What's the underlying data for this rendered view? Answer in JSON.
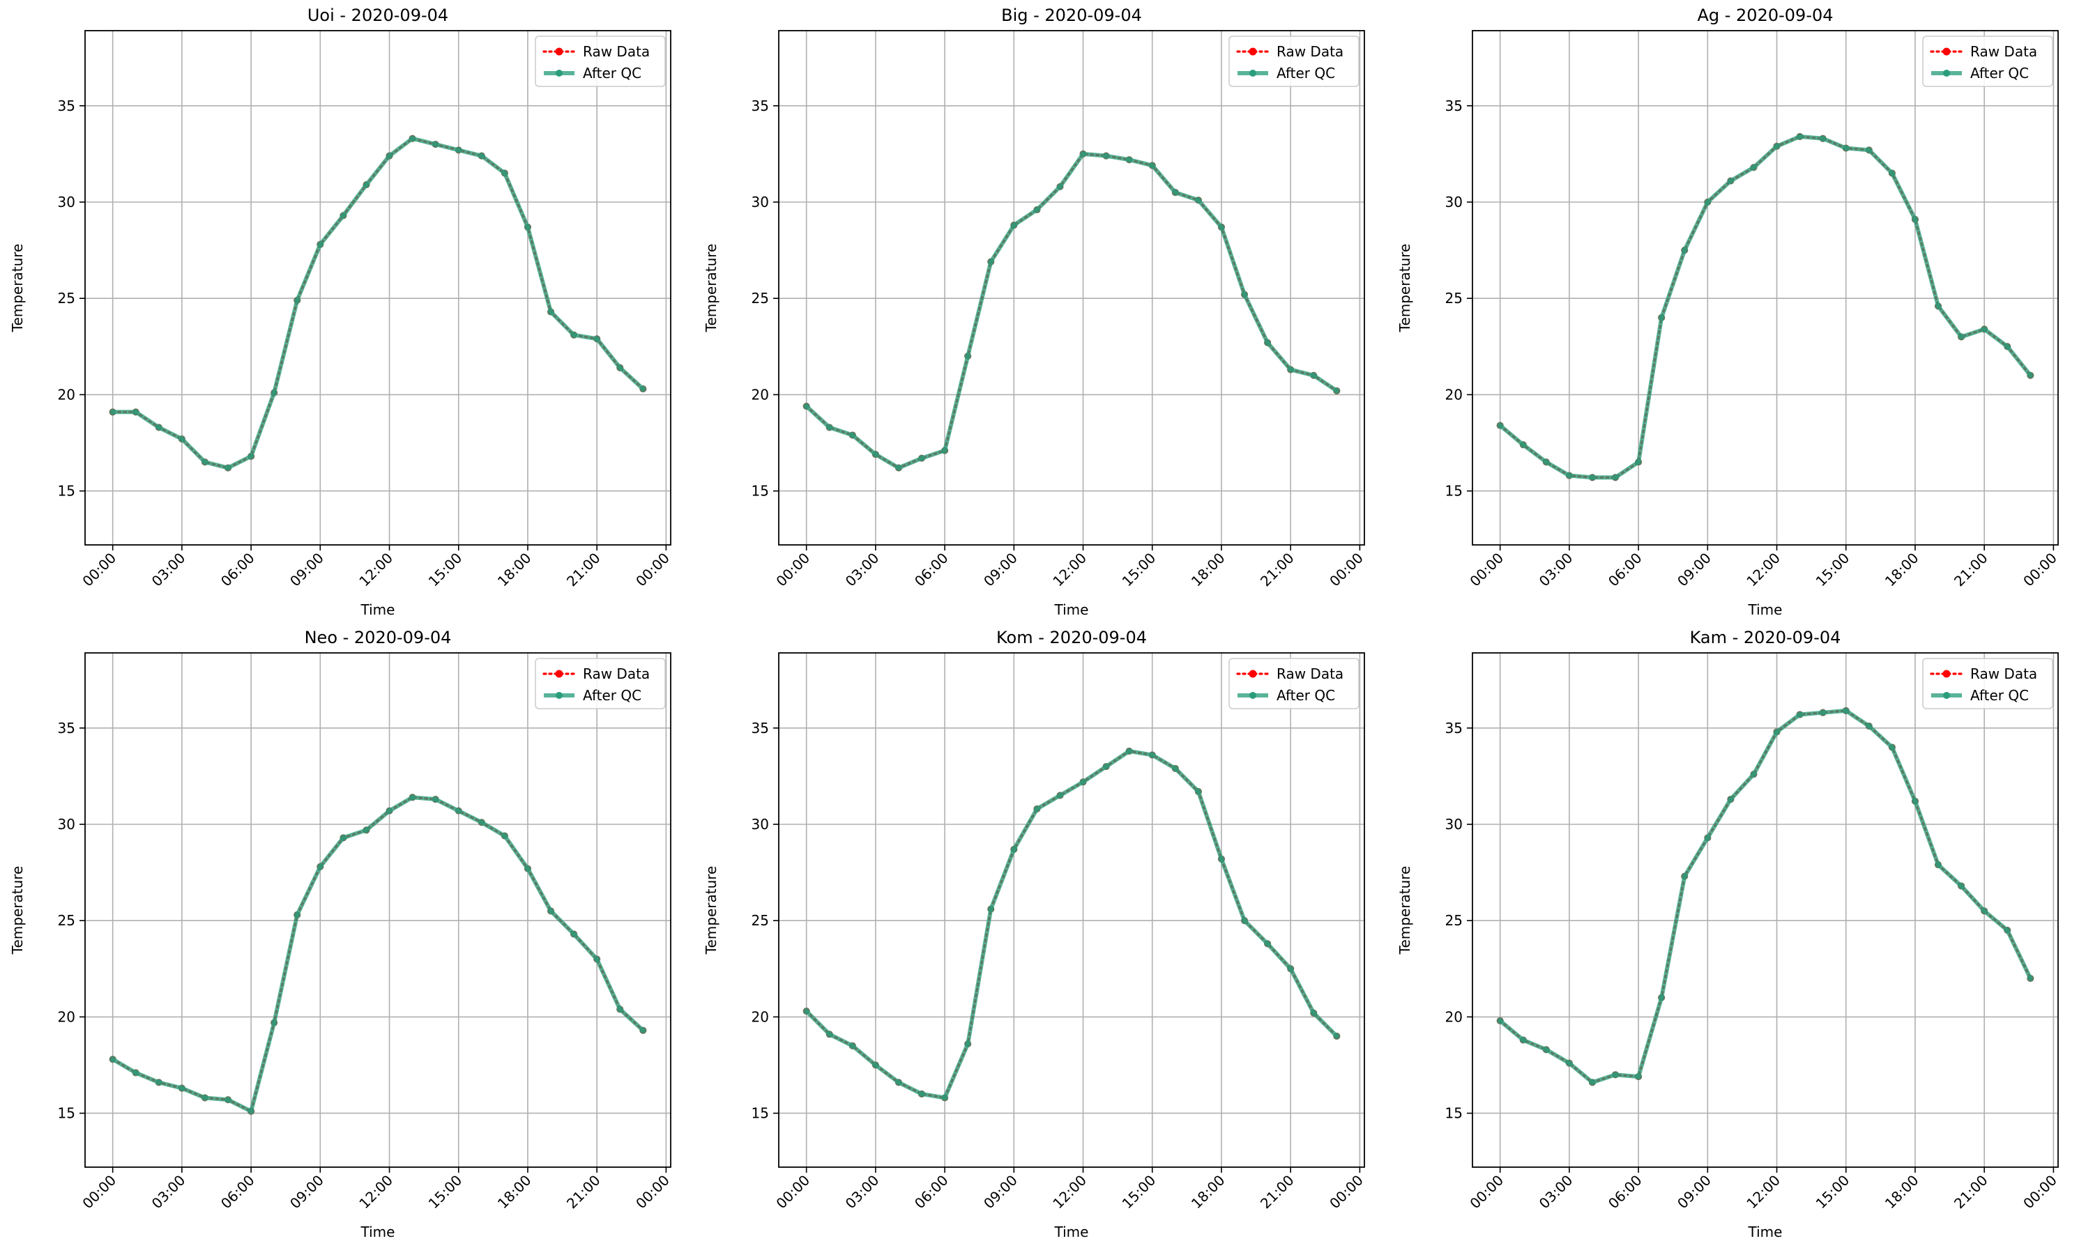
{
  "chart_data": [
    {
      "type": "line",
      "title": "Uoi - 2020-09-04",
      "xlabel": "Time",
      "ylabel": "Temperature",
      "x": [
        "00:00",
        "01:00",
        "02:00",
        "03:00",
        "04:00",
        "05:00",
        "06:00",
        "07:00",
        "08:00",
        "09:00",
        "10:00",
        "11:00",
        "12:00",
        "13:00",
        "14:00",
        "15:00",
        "16:00",
        "17:00",
        "18:00",
        "19:00",
        "20:00",
        "21:00",
        "22:00",
        "23:00"
      ],
      "xticks": [
        "00:00",
        "03:00",
        "06:00",
        "09:00",
        "12:00",
        "15:00",
        "18:00",
        "21:00",
        "00:00"
      ],
      "yticks": [
        15,
        20,
        25,
        30,
        35
      ],
      "ylim": [
        12.2,
        38.9
      ],
      "xlim": [
        -1.2,
        24.2
      ],
      "grid": true,
      "legend_position": "upper right",
      "series": [
        {
          "name": "Raw Data",
          "color": "#ff0000",
          "style": "dotted",
          "values": [
            19.1,
            19.1,
            18.3,
            17.7,
            16.5,
            16.2,
            16.8,
            20.1,
            24.9,
            27.8,
            29.3,
            30.9,
            32.4,
            33.3,
            33.0,
            32.7,
            32.4,
            31.5,
            28.7,
            24.3,
            23.1,
            22.9,
            21.4,
            20.3
          ]
        },
        {
          "name": "After QC",
          "color": "#2a9d7c",
          "style": "solid",
          "values": [
            19.1,
            19.1,
            18.3,
            17.7,
            16.5,
            16.2,
            16.8,
            20.1,
            24.9,
            27.8,
            29.3,
            30.9,
            32.4,
            33.3,
            33.0,
            32.7,
            32.4,
            31.5,
            28.7,
            24.3,
            23.1,
            22.9,
            21.4,
            20.3
          ]
        }
      ]
    },
    {
      "type": "line",
      "title": "Big - 2020-09-04",
      "xlabel": "Time",
      "ylabel": "Temperature",
      "x": [
        "00:00",
        "01:00",
        "02:00",
        "03:00",
        "04:00",
        "05:00",
        "06:00",
        "07:00",
        "08:00",
        "09:00",
        "10:00",
        "11:00",
        "12:00",
        "13:00",
        "14:00",
        "15:00",
        "16:00",
        "17:00",
        "18:00",
        "19:00",
        "20:00",
        "21:00",
        "22:00",
        "23:00"
      ],
      "xticks": [
        "00:00",
        "03:00",
        "06:00",
        "09:00",
        "12:00",
        "15:00",
        "18:00",
        "21:00",
        "00:00"
      ],
      "yticks": [
        15,
        20,
        25,
        30,
        35
      ],
      "ylim": [
        12.2,
        38.9
      ],
      "xlim": [
        -1.2,
        24.2
      ],
      "grid": true,
      "legend_position": "upper right",
      "series": [
        {
          "name": "Raw Data",
          "color": "#ff0000",
          "style": "dotted",
          "values": [
            19.4,
            18.3,
            17.9,
            16.9,
            16.2,
            16.7,
            17.1,
            22.0,
            26.9,
            28.8,
            29.6,
            30.8,
            32.5,
            32.4,
            32.2,
            31.9,
            30.5,
            30.1,
            28.7,
            25.2,
            22.7,
            21.3,
            21.0,
            20.2
          ]
        },
        {
          "name": "After QC",
          "color": "#2a9d7c",
          "style": "solid",
          "values": [
            19.4,
            18.3,
            17.9,
            16.9,
            16.2,
            16.7,
            17.1,
            22.0,
            26.9,
            28.8,
            29.6,
            30.8,
            32.5,
            32.4,
            32.2,
            31.9,
            30.5,
            30.1,
            28.7,
            25.2,
            22.7,
            21.3,
            21.0,
            20.2
          ]
        }
      ]
    },
    {
      "type": "line",
      "title": "Ag - 2020-09-04",
      "xlabel": "Time",
      "ylabel": "Temperature",
      "x": [
        "00:00",
        "01:00",
        "02:00",
        "03:00",
        "04:00",
        "05:00",
        "06:00",
        "07:00",
        "08:00",
        "09:00",
        "10:00",
        "11:00",
        "12:00",
        "13:00",
        "14:00",
        "15:00",
        "16:00",
        "17:00",
        "18:00",
        "19:00",
        "20:00",
        "21:00",
        "22:00",
        "23:00"
      ],
      "xticks": [
        "00:00",
        "03:00",
        "06:00",
        "09:00",
        "12:00",
        "15:00",
        "18:00",
        "21:00",
        "00:00"
      ],
      "yticks": [
        15,
        20,
        25,
        30,
        35
      ],
      "ylim": [
        12.2,
        38.9
      ],
      "xlim": [
        -1.2,
        24.2
      ],
      "grid": true,
      "legend_position": "upper right",
      "series": [
        {
          "name": "Raw Data",
          "color": "#ff0000",
          "style": "dotted",
          "values": [
            18.4,
            17.4,
            16.5,
            15.8,
            15.7,
            15.7,
            16.5,
            24.0,
            27.5,
            30.0,
            31.1,
            31.8,
            32.9,
            33.4,
            33.3,
            32.8,
            32.7,
            31.5,
            29.1,
            24.6,
            23.0,
            23.4,
            22.5,
            21.0
          ]
        },
        {
          "name": "After QC",
          "color": "#2a9d7c",
          "style": "solid",
          "values": [
            18.4,
            17.4,
            16.5,
            15.8,
            15.7,
            15.7,
            16.5,
            24.0,
            27.5,
            30.0,
            31.1,
            31.8,
            32.9,
            33.4,
            33.3,
            32.8,
            32.7,
            31.5,
            29.1,
            24.6,
            23.0,
            23.4,
            22.5,
            21.0
          ]
        }
      ]
    },
    {
      "type": "line",
      "title": "Neo - 2020-09-04",
      "xlabel": "Time",
      "ylabel": "Temperature",
      "x": [
        "00:00",
        "01:00",
        "02:00",
        "03:00",
        "04:00",
        "05:00",
        "06:00",
        "07:00",
        "08:00",
        "09:00",
        "10:00",
        "11:00",
        "12:00",
        "13:00",
        "14:00",
        "15:00",
        "16:00",
        "17:00",
        "18:00",
        "19:00",
        "20:00",
        "21:00",
        "22:00",
        "23:00"
      ],
      "xticks": [
        "00:00",
        "03:00",
        "06:00",
        "09:00",
        "12:00",
        "15:00",
        "18:00",
        "21:00",
        "00:00"
      ],
      "yticks": [
        15,
        20,
        25,
        30,
        35
      ],
      "ylim": [
        12.2,
        38.9
      ],
      "xlim": [
        -1.2,
        24.2
      ],
      "grid": true,
      "legend_position": "upper right",
      "series": [
        {
          "name": "Raw Data",
          "color": "#ff0000",
          "style": "dotted",
          "values": [
            17.8,
            17.1,
            16.6,
            16.3,
            15.8,
            15.7,
            15.1,
            19.7,
            25.3,
            27.8,
            29.3,
            29.7,
            30.7,
            31.4,
            31.3,
            30.7,
            30.1,
            29.4,
            27.7,
            25.5,
            24.3,
            23.0,
            20.4,
            19.3
          ]
        },
        {
          "name": "After QC",
          "color": "#2a9d7c",
          "style": "solid",
          "values": [
            17.8,
            17.1,
            16.6,
            16.3,
            15.8,
            15.7,
            15.1,
            19.7,
            25.3,
            27.8,
            29.3,
            29.7,
            30.7,
            31.4,
            31.3,
            30.7,
            30.1,
            29.4,
            27.7,
            25.5,
            24.3,
            23.0,
            20.4,
            19.3
          ]
        }
      ]
    },
    {
      "type": "line",
      "title": "Kom - 2020-09-04",
      "xlabel": "Time",
      "ylabel": "Temperature",
      "x": [
        "00:00",
        "01:00",
        "02:00",
        "03:00",
        "04:00",
        "05:00",
        "06:00",
        "07:00",
        "08:00",
        "09:00",
        "10:00",
        "11:00",
        "12:00",
        "13:00",
        "14:00",
        "15:00",
        "16:00",
        "17:00",
        "18:00",
        "19:00",
        "20:00",
        "21:00",
        "22:00",
        "23:00"
      ],
      "xticks": [
        "00:00",
        "03:00",
        "06:00",
        "09:00",
        "12:00",
        "15:00",
        "18:00",
        "21:00",
        "00:00"
      ],
      "yticks": [
        15,
        20,
        25,
        30,
        35
      ],
      "ylim": [
        12.2,
        38.9
      ],
      "xlim": [
        -1.2,
        24.2
      ],
      "grid": true,
      "legend_position": "upper right",
      "series": [
        {
          "name": "Raw Data",
          "color": "#ff0000",
          "style": "dotted",
          "values": [
            20.3,
            19.1,
            18.5,
            17.5,
            16.6,
            16.0,
            15.8,
            18.6,
            25.6,
            28.7,
            30.8,
            31.5,
            32.2,
            33.0,
            33.8,
            33.6,
            32.9,
            31.7,
            28.2,
            25.0,
            23.8,
            22.5,
            20.2,
            19.0
          ]
        },
        {
          "name": "After QC",
          "color": "#2a9d7c",
          "style": "solid",
          "values": [
            20.3,
            19.1,
            18.5,
            17.5,
            16.6,
            16.0,
            15.8,
            18.6,
            25.6,
            28.7,
            30.8,
            31.5,
            32.2,
            33.0,
            33.8,
            33.6,
            32.9,
            31.7,
            28.2,
            25.0,
            23.8,
            22.5,
            20.2,
            19.0
          ]
        }
      ]
    },
    {
      "type": "line",
      "title": "Kam - 2020-09-04",
      "xlabel": "Time",
      "ylabel": "Temperature",
      "x": [
        "00:00",
        "01:00",
        "02:00",
        "03:00",
        "04:00",
        "05:00",
        "06:00",
        "07:00",
        "08:00",
        "09:00",
        "10:00",
        "11:00",
        "12:00",
        "13:00",
        "14:00",
        "15:00",
        "16:00",
        "17:00",
        "18:00",
        "19:00",
        "20:00",
        "21:00",
        "22:00",
        "23:00"
      ],
      "xticks": [
        "00:00",
        "03:00",
        "06:00",
        "09:00",
        "12:00",
        "15:00",
        "18:00",
        "21:00",
        "00:00"
      ],
      "yticks": [
        15,
        20,
        25,
        30,
        35
      ],
      "ylim": [
        12.2,
        38.9
      ],
      "xlim": [
        -1.2,
        24.2
      ],
      "grid": true,
      "legend_position": "upper right",
      "series": [
        {
          "name": "Raw Data",
          "color": "#ff0000",
          "style": "dotted",
          "values": [
            19.8,
            18.8,
            18.3,
            17.6,
            16.6,
            17.0,
            16.9,
            21.0,
            27.3,
            29.3,
            31.3,
            32.6,
            34.8,
            35.7,
            35.8,
            35.9,
            35.1,
            34.0,
            31.2,
            27.9,
            26.8,
            25.5,
            24.5,
            22.0
          ]
        },
        {
          "name": "After QC",
          "color": "#2a9d7c",
          "style": "solid",
          "values": [
            19.8,
            18.8,
            18.3,
            17.6,
            16.6,
            17.0,
            16.9,
            21.0,
            27.3,
            29.3,
            31.3,
            32.6,
            34.8,
            35.7,
            35.8,
            35.9,
            35.1,
            34.0,
            31.2,
            27.9,
            26.8,
            25.5,
            24.5,
            22.0
          ]
        }
      ]
    }
  ]
}
